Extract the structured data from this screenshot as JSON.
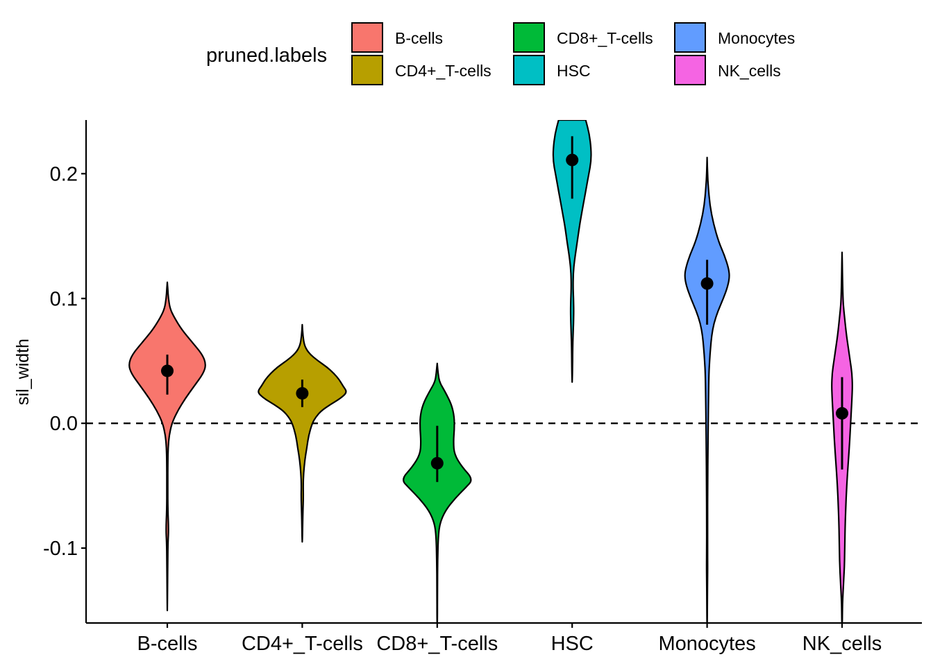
{
  "chart_data": {
    "type": "violin",
    "ylabel": "sil_width",
    "ylim": [
      -0.16,
      0.243
    ],
    "y_ticks": [
      -0.1,
      0.0,
      0.1,
      0.2
    ],
    "y_tick_labels": [
      "-0.1",
      "0.0",
      "0.1",
      "0.2"
    ],
    "reference_line": {
      "y": 0.0,
      "style": "dashed"
    },
    "legend": {
      "title": "pruned.labels",
      "placement": "top",
      "entries": [
        "B-cells",
        "CD4+_T-cells",
        "CD8+_T-cells",
        "HSC",
        "Monocytes",
        "NK_cells"
      ]
    },
    "categories": [
      "B-cells",
      "CD4+_T-cells",
      "CD8+_T-cells",
      "HSC",
      "Monocytes",
      "NK_cells"
    ],
    "series": [
      {
        "name": "B-cells",
        "color": "#F8766D",
        "median": 0.042,
        "lower": 0.023,
        "upper": 0.055,
        "profile": [
          [
            0.113,
            0
          ],
          [
            0.108,
            0.01
          ],
          [
            0.1,
            0.025
          ],
          [
            0.092,
            0.06
          ],
          [
            0.085,
            0.15
          ],
          [
            0.075,
            0.32
          ],
          [
            0.065,
            0.55
          ],
          [
            0.055,
            0.78
          ],
          [
            0.047,
            0.86
          ],
          [
            0.04,
            0.8
          ],
          [
            0.03,
            0.6
          ],
          [
            0.02,
            0.4
          ],
          [
            0.01,
            0.23
          ],
          [
            0.0,
            0.1
          ],
          [
            -0.01,
            0.04
          ],
          [
            -0.02,
            0.018
          ],
          [
            -0.03,
            0.012
          ],
          [
            -0.05,
            0.01
          ],
          [
            -0.07,
            0.012
          ],
          [
            -0.085,
            0.03
          ],
          [
            -0.095,
            0.015
          ],
          [
            -0.11,
            0.01
          ],
          [
            -0.13,
            0.006
          ],
          [
            -0.15,
            0
          ]
        ]
      },
      {
        "name": "CD4+_T-cells",
        "color": "#B79F00",
        "median": 0.024,
        "lower": 0.013,
        "upper": 0.035,
        "profile": [
          [
            0.079,
            0
          ],
          [
            0.07,
            0.015
          ],
          [
            0.062,
            0.05
          ],
          [
            0.056,
            0.15
          ],
          [
            0.05,
            0.35
          ],
          [
            0.045,
            0.55
          ],
          [
            0.04,
            0.7
          ],
          [
            0.035,
            0.82
          ],
          [
            0.03,
            0.9
          ],
          [
            0.025,
            1.0
          ],
          [
            0.02,
            0.85
          ],
          [
            0.015,
            0.62
          ],
          [
            0.01,
            0.42
          ],
          [
            0.005,
            0.3
          ],
          [
            0.0,
            0.22
          ],
          [
            -0.01,
            0.14
          ],
          [
            -0.02,
            0.1
          ],
          [
            -0.03,
            0.055
          ],
          [
            -0.04,
            0.03
          ],
          [
            -0.05,
            0.02
          ],
          [
            -0.06,
            0.025
          ],
          [
            -0.07,
            0.015
          ],
          [
            -0.085,
            0.008
          ],
          [
            -0.095,
            0
          ]
        ]
      },
      {
        "name": "CD8+_T-cells",
        "color": "#00BA38",
        "median": -0.032,
        "lower": -0.047,
        "upper": -0.002,
        "profile": [
          [
            0.048,
            0
          ],
          [
            0.04,
            0.02
          ],
          [
            0.033,
            0.05
          ],
          [
            0.025,
            0.18
          ],
          [
            0.015,
            0.32
          ],
          [
            0.005,
            0.38
          ],
          [
            -0.005,
            0.38
          ],
          [
            -0.015,
            0.36
          ],
          [
            -0.025,
            0.38
          ],
          [
            -0.035,
            0.55
          ],
          [
            -0.045,
            0.8
          ],
          [
            -0.052,
            0.62
          ],
          [
            -0.06,
            0.4
          ],
          [
            -0.07,
            0.18
          ],
          [
            -0.08,
            0.06
          ],
          [
            -0.09,
            0.025
          ],
          [
            -0.11,
            0.01
          ],
          [
            -0.13,
            0.006
          ],
          [
            -0.16,
            0.004
          ]
        ]
      },
      {
        "name": "HSC",
        "color": "#00BFC4",
        "median": 0.211,
        "lower": 0.18,
        "upper": 0.23,
        "profile": [
          [
            0.243,
            0.3
          ],
          [
            0.232,
            0.38
          ],
          [
            0.22,
            0.42
          ],
          [
            0.21,
            0.42
          ],
          [
            0.2,
            0.37
          ],
          [
            0.19,
            0.32
          ],
          [
            0.18,
            0.27
          ],
          [
            0.17,
            0.22
          ],
          [
            0.16,
            0.17
          ],
          [
            0.15,
            0.13
          ],
          [
            0.14,
            0.09
          ],
          [
            0.13,
            0.05
          ],
          [
            0.12,
            0.025
          ],
          [
            0.11,
            0.02
          ],
          [
            0.1,
            0.03
          ],
          [
            0.09,
            0.035
          ],
          [
            0.08,
            0.03
          ],
          [
            0.07,
            0.02
          ],
          [
            0.06,
            0.012
          ],
          [
            0.05,
            0.01
          ],
          [
            0.04,
            0.006
          ],
          [
            0.033,
            0
          ]
        ]
      },
      {
        "name": "Monocytes",
        "color": "#619CFF",
        "median": 0.112,
        "lower": 0.079,
        "upper": 0.131,
        "profile": [
          [
            0.213,
            0
          ],
          [
            0.2,
            0.01
          ],
          [
            0.19,
            0.025
          ],
          [
            0.175,
            0.06
          ],
          [
            0.16,
            0.14
          ],
          [
            0.145,
            0.26
          ],
          [
            0.135,
            0.38
          ],
          [
            0.125,
            0.47
          ],
          [
            0.118,
            0.5
          ],
          [
            0.11,
            0.46
          ],
          [
            0.1,
            0.36
          ],
          [
            0.09,
            0.24
          ],
          [
            0.08,
            0.15
          ],
          [
            0.07,
            0.1
          ],
          [
            0.06,
            0.075
          ],
          [
            0.05,
            0.055
          ],
          [
            0.04,
            0.04
          ],
          [
            0.02,
            0.03
          ],
          [
            0.0,
            0.025
          ],
          [
            -0.02,
            0.018
          ],
          [
            -0.05,
            0.012
          ],
          [
            -0.08,
            0.01
          ],
          [
            -0.1,
            0.01
          ],
          [
            -0.115,
            0.012
          ],
          [
            -0.125,
            0.009
          ],
          [
            -0.14,
            0.006
          ],
          [
            -0.16,
            0.003
          ]
        ]
      },
      {
        "name": "NK_cells",
        "color": "#F564E3",
        "median": 0.008,
        "lower": -0.037,
        "upper": 0.037,
        "profile": [
          [
            0.137,
            0
          ],
          [
            0.12,
            0.008
          ],
          [
            0.1,
            0.02
          ],
          [
            0.09,
            0.04
          ],
          [
            0.08,
            0.07
          ],
          [
            0.07,
            0.1
          ],
          [
            0.06,
            0.14
          ],
          [
            0.05,
            0.18
          ],
          [
            0.04,
            0.22
          ],
          [
            0.03,
            0.23
          ],
          [
            0.02,
            0.22
          ],
          [
            0.0,
            0.19
          ],
          [
            -0.02,
            0.16
          ],
          [
            -0.04,
            0.12
          ],
          [
            -0.06,
            0.09
          ],
          [
            -0.08,
            0.07
          ],
          [
            -0.1,
            0.06
          ],
          [
            -0.11,
            0.055
          ],
          [
            -0.12,
            0.045
          ],
          [
            -0.13,
            0.03
          ],
          [
            -0.14,
            0.015
          ],
          [
            -0.15,
            0.008
          ],
          [
            -0.16,
            0.004
          ]
        ]
      }
    ]
  }
}
